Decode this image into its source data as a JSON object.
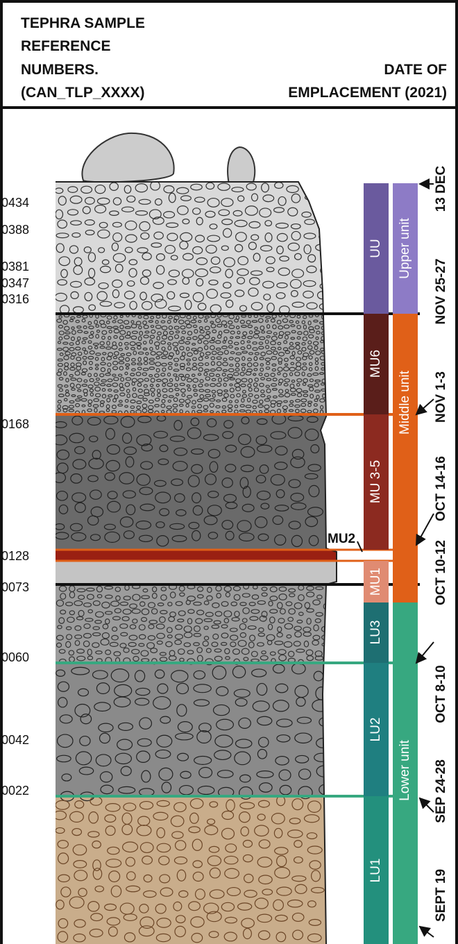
{
  "header": {
    "left_lines": [
      "TEPHRA SAMPLE",
      "REFERENCE",
      "NUMBERS.",
      "(CAN_TLP_XXXX)"
    ],
    "right_lines": [
      "DATE OF",
      "EMPLACEMENT (2021)"
    ]
  },
  "samples": [
    "0434",
    "0388",
    "0381",
    "0347",
    "0316",
    "0168",
    "0128",
    "0073",
    "0060",
    "0042",
    "0022"
  ],
  "units": [
    "UU",
    "Upper unit",
    "MU6",
    "MU 3-5",
    "MU2",
    "MU1",
    "Middle unit",
    "LU3",
    "LU2",
    "LU1",
    "Lower unit"
  ],
  "dates": [
    "13 DEC",
    "NOV 25-27",
    "NOV 1-3",
    "OCT 14-16",
    "OCT 10-12",
    "OCT 8-10",
    "SEP 24-28",
    "SEPT 19"
  ]
}
